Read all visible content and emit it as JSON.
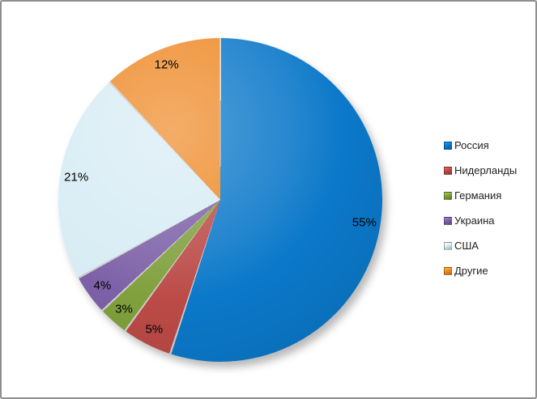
{
  "window": {
    "background_color": "#ffffff",
    "border_color": "#8f8f8f"
  },
  "chart_data": {
    "type": "pie",
    "title": "",
    "legend_position": "right",
    "start_angle_deg": 0,
    "direction": "clockwise",
    "slices": [
      {
        "name": "Россия",
        "value": 55,
        "pct_label": "55%",
        "color": "#0b78c9"
      },
      {
        "name": "Нидерланды",
        "value": 5,
        "pct_label": "5%",
        "color": "#bb4a46"
      },
      {
        "name": "Германия",
        "value": 3,
        "pct_label": "3%",
        "color": "#7fa03c"
      },
      {
        "name": "Украина",
        "value": 4,
        "pct_label": "4%",
        "color": "#7d60a7"
      },
      {
        "name": "США",
        "value": 21,
        "pct_label": "21%",
        "color": "#d7ecf4"
      },
      {
        "name": "Другие",
        "value": 12,
        "pct_label": "12%",
        "color": "#ee8a28"
      }
    ]
  }
}
